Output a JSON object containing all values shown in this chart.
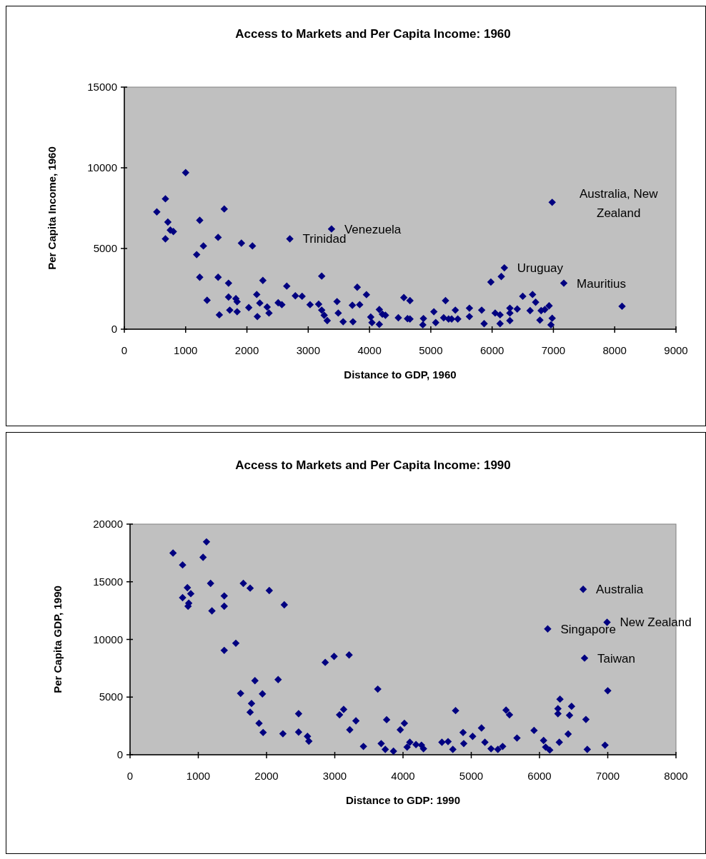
{
  "chart_data": [
    {
      "type": "scatter",
      "title": "Access to Markets and Per Capita Income: 1960",
      "xlabel": "Distance to GDP, 1960",
      "ylabel": "Per Capita Income, 1960",
      "xlim": [
        0,
        9000
      ],
      "xticks": [
        0,
        1000,
        2000,
        3000,
        4000,
        5000,
        6000,
        7000,
        8000,
        9000
      ],
      "ylim": [
        0,
        15000
      ],
      "yticks": [
        0,
        5000,
        10000,
        15000
      ],
      "grid": false,
      "marker": "diamond",
      "series": [
        {
          "color": "#000080",
          "x": [
            1000,
            670,
            530,
            710,
            750,
            800,
            670,
            1630,
            1230,
            1530,
            1290,
            1180,
            1910,
            2090,
            2700,
            3380,
            1230,
            1530,
            1350,
            1700,
            1700,
            1820,
            1840,
            1550,
            1720,
            1840,
            2030,
            2160,
            2210,
            2170,
            2260,
            2330,
            2360,
            2510,
            2570,
            2650,
            2790,
            2900,
            3030,
            3170,
            3220,
            3260,
            3310,
            3220,
            3470,
            3490,
            3570,
            3730,
            3720,
            3840,
            3800,
            3950,
            4020,
            4040,
            4160,
            4210,
            4260,
            4160,
            4470,
            4560,
            4660,
            4620,
            4660,
            4880,
            4870,
            5050,
            5080,
            5210,
            5290,
            5340,
            5440,
            5240,
            5400,
            5630,
            5630,
            5830,
            5870,
            6050,
            6130,
            6130,
            6290,
            6290,
            6290,
            6410,
            5980,
            6150,
            6200,
            6500,
            6660,
            6710,
            6620,
            6780,
            6800,
            6860,
            6930,
            6980,
            6960,
            6980,
            7170,
            8120
          ],
          "values": [
            9700,
            8080,
            7270,
            6640,
            6140,
            6050,
            5600,
            7450,
            6750,
            5690,
            5160,
            4620,
            5330,
            5160,
            5600,
            6210,
            3220,
            3220,
            1790,
            2850,
            1990,
            1890,
            1700,
            890,
            1180,
            1080,
            1340,
            2150,
            1620,
            780,
            3020,
            1370,
            1000,
            1640,
            1520,
            2670,
            2070,
            2040,
            1520,
            1550,
            1180,
            860,
            530,
            3290,
            1710,
            1000,
            460,
            460,
            1480,
            1520,
            2600,
            2140,
            750,
            410,
            1220,
            930,
            860,
            300,
            710,
            1960,
            1770,
            650,
            630,
            660,
            270,
            1080,
            410,
            710,
            630,
            630,
            630,
            1770,
            1180,
            1300,
            780,
            1180,
            340,
            1000,
            890,
            340,
            1300,
            1000,
            530,
            1250,
            2920,
            3260,
            3800,
            2040,
            2150,
            1670,
            1150,
            560,
            1150,
            1220,
            1450,
            680,
            270,
            7860,
            2850,
            1420
          ]
        }
      ],
      "annotations": [
        {
          "text": "Trinidad",
          "x": 2700,
          "y": 5600
        },
        {
          "text": "Venezuela",
          "x": 3380,
          "y": 6210
        },
        {
          "text": "Australia, New Zealand",
          "x": 6980,
          "y": 7860
        },
        {
          "text": "Uruguay",
          "x": 6200,
          "y": 3800
        },
        {
          "text": "Mauritius",
          "x": 7170,
          "y": 2850
        }
      ]
    },
    {
      "type": "scatter",
      "title": "Access to Markets and Per Capita Income: 1990",
      "xlabel": "Distance to GDP: 1990",
      "ylabel": "Per Capita GDP, 1990",
      "xlim": [
        0,
        8000
      ],
      "xticks": [
        0,
        1000,
        2000,
        3000,
        4000,
        5000,
        6000,
        7000,
        8000
      ],
      "ylim": [
        0,
        20000
      ],
      "yticks": [
        0,
        5000,
        10000,
        15000,
        20000
      ],
      "grid": false,
      "marker": "diamond",
      "series": [
        {
          "color": "#000080",
          "x": [
            630,
            770,
            1120,
            1070,
            840,
            890,
            770,
            860,
            850,
            1180,
            1200,
            1380,
            1380,
            1660,
            1760,
            2040,
            2260,
            1380,
            1550,
            2860,
            2990,
            3210,
            1620,
            1830,
            1940,
            2170,
            1780,
            1760,
            1890,
            1950,
            2240,
            2470,
            2470,
            2600,
            2620,
            3070,
            3130,
            3310,
            3220,
            3420,
            3630,
            3760,
            3680,
            3740,
            3860,
            3960,
            4020,
            4060,
            4100,
            4190,
            4270,
            4300,
            4570,
            4660,
            4730,
            4770,
            4880,
            4890,
            5020,
            5150,
            5200,
            5290,
            5390,
            5460,
            5510,
            5560,
            5670,
            5920,
            6060,
            6090,
            6150,
            6290,
            6420,
            6300,
            6270,
            6270,
            6470,
            6440,
            6680,
            6700,
            6960,
            7000,
            6640,
            6990,
            6120,
            6660
          ],
          "values": [
            17490,
            16460,
            18460,
            17120,
            14490,
            13970,
            13620,
            13140,
            12880,
            14860,
            12480,
            13770,
            12880,
            14860,
            14450,
            14240,
            13000,
            9050,
            9670,
            8010,
            8530,
            8650,
            5320,
            6420,
            5280,
            6520,
            4450,
            3690,
            2730,
            1930,
            1820,
            3560,
            1970,
            1590,
            1180,
            3460,
            3930,
            2940,
            2170,
            720,
            5690,
            3040,
            970,
            460,
            310,
            2170,
            2730,
            660,
            1080,
            880,
            830,
            520,
            1080,
            1140,
            460,
            3830,
            1930,
            970,
            1590,
            2320,
            1080,
            520,
            460,
            720,
            3870,
            3460,
            1450,
            2110,
            1240,
            660,
            410,
            1080,
            1800,
            4820,
            4000,
            3560,
            4200,
            3420,
            3060,
            460,
            830,
            5550,
            14350,
            11490,
            10910,
            8380
          ]
        }
      ],
      "annotations": [
        {
          "text": "Australia",
          "x": 6640,
          "y": 14350
        },
        {
          "text": "New Zealand",
          "x": 6990,
          "y": 11490
        },
        {
          "text": "Singapore",
          "x": 6120,
          "y": 10910
        },
        {
          "text": "Taiwan",
          "x": 6660,
          "y": 8380
        }
      ]
    }
  ]
}
